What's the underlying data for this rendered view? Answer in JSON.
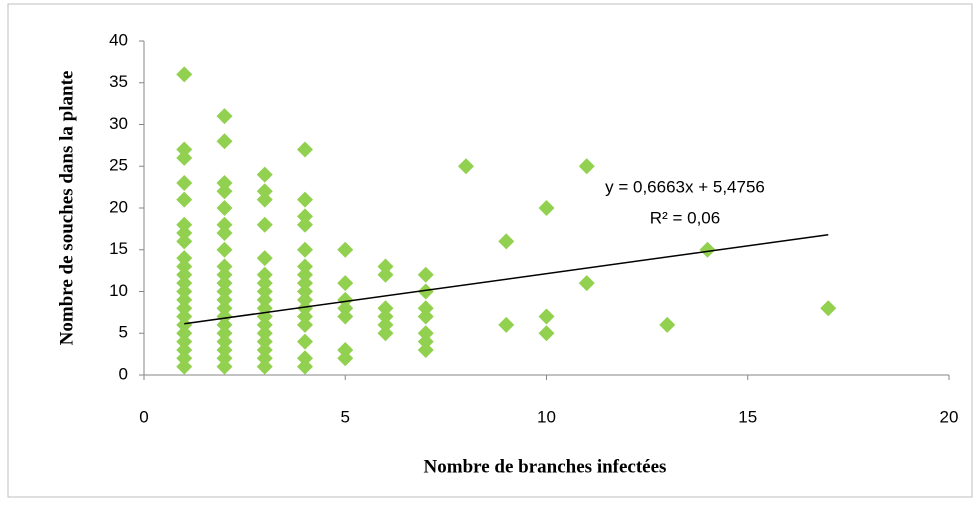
{
  "chart_data": {
    "type": "scatter",
    "x_label": "Nombre de branches infectées",
    "y_label": "Nombre de souches dans la plante",
    "x": [
      1,
      1,
      1,
      1,
      1,
      1,
      1,
      1,
      1,
      1,
      1,
      1,
      1,
      1,
      1,
      1,
      1,
      1,
      1,
      1,
      1,
      1,
      2,
      2,
      2,
      2,
      2,
      2,
      2,
      2,
      2,
      2,
      2,
      2,
      2,
      2,
      2,
      2,
      2,
      2,
      2,
      2,
      2,
      3,
      3,
      3,
      3,
      3,
      3,
      3,
      3,
      3,
      3,
      3,
      3,
      3,
      3,
      3,
      3,
      3,
      4,
      4,
      4,
      4,
      4,
      4,
      4,
      4,
      4,
      4,
      4,
      4,
      4,
      4,
      4,
      4,
      5,
      5,
      5,
      5,
      5,
      5,
      5,
      6,
      6,
      6,
      6,
      6,
      6,
      7,
      7,
      7,
      7,
      7,
      7,
      7,
      8,
      9,
      9,
      10,
      10,
      10,
      11,
      11,
      13,
      14,
      17
    ],
    "y": [
      36,
      27,
      26,
      23,
      21,
      18,
      17,
      16,
      14,
      13,
      12,
      11,
      10,
      9,
      8,
      7,
      6,
      5,
      4,
      3,
      2,
      1,
      31,
      28,
      23,
      22,
      20,
      18,
      17,
      15,
      13,
      12,
      11,
      10,
      9,
      8,
      7,
      6,
      5,
      4,
      3,
      2,
      1,
      24,
      22,
      21,
      18,
      14,
      12,
      11,
      10,
      9,
      8,
      7,
      6,
      5,
      4,
      3,
      2,
      1,
      27,
      21,
      19,
      18,
      15,
      13,
      12,
      11,
      10,
      9,
      8,
      7,
      6,
      4,
      2,
      1,
      15,
      11,
      9,
      8,
      7,
      3,
      2,
      13,
      12,
      8,
      7,
      6,
      5,
      12,
      10,
      8,
      7,
      5,
      4,
      3,
      25,
      16,
      6,
      20,
      7,
      5,
      25,
      11,
      6,
      15,
      8
    ],
    "color": "#92d050",
    "trendline": {
      "slope": 0.6663,
      "intercept": 5.4756,
      "color": "#000000",
      "equation": "y = 0,6663x + 5,4756",
      "r2": "R² = 0,06"
    },
    "xlim": [
      0,
      20
    ],
    "xticks": [
      0,
      5,
      10,
      15,
      20
    ],
    "ylim": [
      0,
      40
    ],
    "yticks": [
      0,
      5,
      10,
      15,
      20,
      25,
      30,
      35,
      40
    ],
    "grid": false
  }
}
